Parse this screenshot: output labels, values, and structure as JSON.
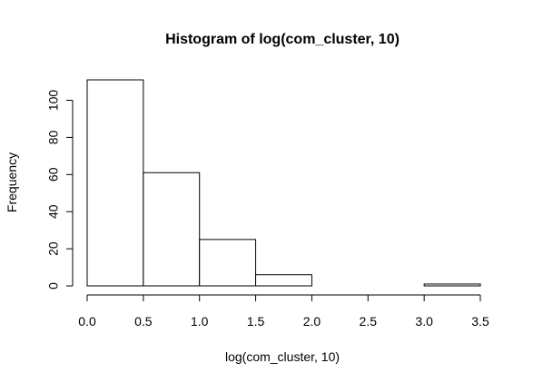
{
  "chart_data": {
    "type": "bar",
    "title": "Histogram of log(com_cluster, 10)",
    "xlabel": "log(com_cluster, 10)",
    "ylabel": "Frequency",
    "bins": [
      {
        "x0": 0.0,
        "x1": 0.5,
        "count": 111
      },
      {
        "x0": 0.5,
        "x1": 1.0,
        "count": 61
      },
      {
        "x0": 1.0,
        "x1": 1.5,
        "count": 25
      },
      {
        "x0": 1.5,
        "x1": 2.0,
        "count": 6
      },
      {
        "x0": 2.0,
        "x1": 2.5,
        "count": 0
      },
      {
        "x0": 2.5,
        "x1": 3.0,
        "count": 0
      },
      {
        "x0": 3.0,
        "x1": 3.5,
        "count": 1
      }
    ],
    "xlim": [
      0.0,
      3.5
    ],
    "ylim": [
      0,
      111
    ],
    "x_ticks": [
      "0.0",
      "0.5",
      "1.0",
      "1.5",
      "2.0",
      "2.5",
      "3.0",
      "3.5"
    ],
    "y_ticks": [
      "0",
      "20",
      "40",
      "60",
      "80",
      "100"
    ],
    "grid": false,
    "colors": {
      "fill": "#ffffff",
      "stroke": "#000000"
    }
  }
}
